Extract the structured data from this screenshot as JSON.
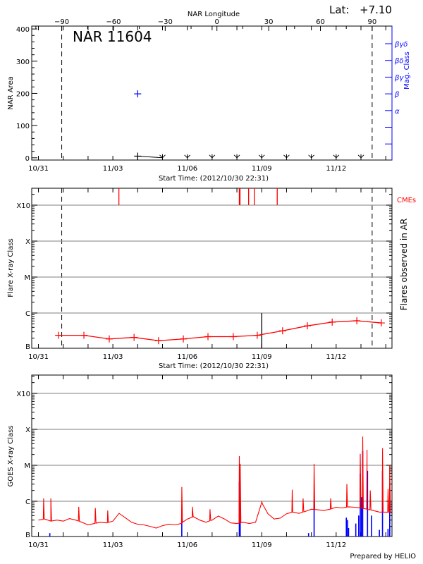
{
  "header": {
    "lat_label": "Lat:",
    "lat_value": "+7.10",
    "region_title": "NAR 11604",
    "prepared_by": "Prepared by HELIO"
  },
  "colors": {
    "flux": "#ff0000",
    "events": "#0000ff",
    "cme": "#ff0000",
    "mag": "#0000ff",
    "grid": "#999999",
    "axis": "#000000"
  },
  "chart_data": [
    {
      "type": "line",
      "name": "nar-area-panel",
      "xlabel": "Start Time: (2012/10/30 22:31)",
      "ylabel": "NAR Area",
      "top_xlabel": "NAR Longitude",
      "right_ylabel": "Mag. Class",
      "xlim": [
        "2012-10-30T17:30",
        "2012-11-14T06:00"
      ],
      "x_tick_labels": [
        {
          "t": "2012-10-31T00:00",
          "label": "10/31"
        },
        {
          "t": "2012-11-03T00:00",
          "label": "11/03"
        },
        {
          "t": "2012-11-06T00:00",
          "label": "11/06"
        },
        {
          "t": "2012-11-09T00:00",
          "label": "11/09"
        },
        {
          "t": "2012-11-12T00:00",
          "label": "11/12"
        }
      ],
      "ylim": [
        -7,
        409
      ],
      "y_ticks": [
        0,
        100,
        200,
        300,
        400
      ],
      "lon_lim": [
        -107.4,
        101.5
      ],
      "lon_ticks": [
        -90,
        -60,
        -30,
        0,
        30,
        60,
        90
      ],
      "limb_lines_lon": [
        -90,
        90
      ],
      "mag_class_ticks": [
        "βγδ",
        "βδ",
        "βγ",
        "β",
        "α",
        "",
        ""
      ],
      "area_points": [
        {
          "t": "2012-11-04T00:00",
          "area": 5
        }
      ],
      "area_zero_markers": [
        "2012-11-05T00:00",
        "2012-11-06T00:00",
        "2012-11-07T00:00",
        "2012-11-08T00:00",
        "2012-11-09T00:00",
        "2012-11-10T00:00",
        "2012-11-11T00:00",
        "2012-11-12T00:00",
        "2012-11-13T00:00"
      ],
      "mag_class_points": [
        {
          "t": "2012-11-04T00:00",
          "class": "β"
        }
      ]
    },
    {
      "type": "line",
      "name": "flare-class-panel",
      "xlabel": "Start Time: (2012/10/30 22:31)",
      "ylabel": "Flare X-ray Class",
      "right_ylabel": "Flares observed in AR",
      "cme_label": "CMEs",
      "y_scale": "log",
      "ylim": [
        "B1.0",
        "X30"
      ],
      "y_levels": [
        {
          "label": "B",
          "flux": 1e-07
        },
        {
          "label": "C",
          "flux": 1e-06
        },
        {
          "label": "M",
          "flux": 1e-05
        },
        {
          "label": "X",
          "flux": 0.0001
        },
        {
          "label": "X10",
          "flux": 0.001
        }
      ],
      "grid": true,
      "background_flux": [
        {
          "t": "2012-10-31T19:30",
          "class": "B2.4"
        },
        {
          "t": "2012-11-01T20:00",
          "class": "B2.4"
        },
        {
          "t": "2012-11-02T20:30",
          "class": "B1.9"
        },
        {
          "t": "2012-11-03T20:30",
          "class": "B2.1"
        },
        {
          "t": "2012-11-04T20:10",
          "class": "B1.7"
        },
        {
          "t": "2012-11-05T20:10",
          "class": "B1.9"
        },
        {
          "t": "2012-11-06T20:00",
          "class": "B2.2"
        },
        {
          "t": "2012-11-07T20:30",
          "class": "B2.2"
        },
        {
          "t": "2012-11-08T19:40",
          "class": "B2.4"
        },
        {
          "t": "2012-11-09T20:10",
          "class": "B3.2"
        },
        {
          "t": "2012-11-10T20:10",
          "class": "B4.4"
        },
        {
          "t": "2012-11-11T20:10",
          "class": "B5.6"
        },
        {
          "t": "2012-11-12T20:00",
          "class": "B6.1"
        },
        {
          "t": "2012-11-13T19:40",
          "class": "B5.3"
        }
      ],
      "reference_line": {
        "t": "2012-11-09T00:00",
        "from": "B1.0",
        "to": "C1.0"
      },
      "cmes": [
        "2012-11-03T05:50",
        "2012-11-08T02:20",
        "2012-11-08T03:00",
        "2012-11-08T11:20",
        "2012-11-08T16:50",
        "2012-11-09T15:00"
      ]
    },
    {
      "type": "line",
      "name": "goes-xray-panel",
      "ylabel": "GOES X-ray Class",
      "y_scale": "log",
      "ylim": [
        "B1.0",
        "X30"
      ],
      "y_levels": [
        {
          "label": "B",
          "flux": 1e-07
        },
        {
          "label": "C",
          "flux": 1e-06
        },
        {
          "label": "M",
          "flux": 1e-05
        },
        {
          "label": "X",
          "flux": 0.0001
        },
        {
          "label": "X10",
          "flux": 0.001
        }
      ],
      "grid": true,
      "goes_start": "2012-10-31T00:00",
      "goes_step_hours": 6,
      "goes_baseline": [
        "B3.0",
        "B3.2",
        "B2.8",
        "B3.0",
        "B2.8",
        "B3.3",
        "B3.0",
        "B2.6",
        "B2.2",
        "B2.4",
        "B2.6",
        "B2.5",
        "B2.8",
        "B4.6",
        "B3.5",
        "B2.6",
        "B2.3",
        "B2.2",
        "B2.0",
        "B1.8",
        "B2.1",
        "B2.3",
        "B2.2",
        "B2.4",
        "B3.2",
        "B3.7",
        "B3.0",
        "B2.6",
        "B3.0",
        "B3.9",
        "B3.2",
        "B2.5",
        "B2.4",
        "B2.6",
        "B2.4",
        "B2.6",
        "B9.0",
        "B4.5",
        "B3.2",
        "B3.4",
        "B4.5",
        "B5.0",
        "B4.6",
        "B5.2",
        "B6.0",
        "B5.8",
        "B5.5",
        "B6.0",
        "B6.8",
        "B6.5",
        "B7.0",
        "B6.8",
        "B6.5",
        "B6.0",
        "B5.5",
        "B5.0",
        "B5.0",
        "B4.8"
      ],
      "goes_peaks": [
        {
          "t": "2012-10-31T05:00",
          "class": "C1.2"
        },
        {
          "t": "2012-10-31T12:00",
          "class": "C1.2"
        },
        {
          "t": "2012-11-01T15:00",
          "class": "B7.0"
        },
        {
          "t": "2012-11-02T07:00",
          "class": "B6.5"
        },
        {
          "t": "2012-11-02T19:00",
          "class": "B5.5"
        },
        {
          "t": "2012-11-05T18:40",
          "class": "C2.5"
        },
        {
          "t": "2012-11-06T05:00",
          "class": "B7.0"
        },
        {
          "t": "2012-11-06T22:00",
          "class": "B6.0"
        },
        {
          "t": "2012-11-08T02:20",
          "class": "M1.8"
        },
        {
          "t": "2012-11-08T03:10",
          "class": "M1.1"
        },
        {
          "t": "2012-11-09T00:00",
          "class": "C1.0"
        },
        {
          "t": "2012-11-10T05:30",
          "class": "C2.1"
        },
        {
          "t": "2012-11-10T16:00",
          "class": "C1.2"
        },
        {
          "t": "2012-11-11T02:40",
          "class": "M1.1"
        },
        {
          "t": "2012-11-11T18:40",
          "class": "C1.2"
        },
        {
          "t": "2012-11-12T10:20",
          "class": "C3.0"
        },
        {
          "t": "2012-11-12T23:20",
          "class": "M2.1"
        },
        {
          "t": "2012-11-13T01:40",
          "class": "M6.3"
        },
        {
          "t": "2012-11-13T05:50",
          "class": "M2.7"
        },
        {
          "t": "2012-11-13T09:00",
          "class": "C2.0"
        },
        {
          "t": "2012-11-13T20:50",
          "class": "M3.0"
        },
        {
          "t": "2012-11-14T02:10",
          "class": "C2.2"
        },
        {
          "t": "2012-11-14T03:50",
          "class": "M1.0"
        }
      ],
      "flare_events": [
        {
          "t": "2012-10-31T11:00",
          "class": "B1.3"
        },
        {
          "t": "2012-11-05T18:40",
          "class": "B3.4"
        },
        {
          "t": "2012-11-08T02:20",
          "class": "C3.5"
        },
        {
          "t": "2012-11-08T03:10",
          "class": "C1.3"
        },
        {
          "t": "2012-11-10T21:20",
          "class": "B1.3"
        },
        {
          "t": "2012-11-11T02:40",
          "class": "C1.0"
        },
        {
          "t": "2012-11-12T09:50",
          "class": "B3.5"
        },
        {
          "t": "2012-11-12T11:00",
          "class": "B3.0"
        },
        {
          "t": "2012-11-12T12:00",
          "class": "B1.8"
        },
        {
          "t": "2012-11-12T19:00",
          "class": "B2.4"
        },
        {
          "t": "2012-11-12T21:50",
          "class": "B4.0"
        },
        {
          "t": "2012-11-12T23:20",
          "class": "C5.8"
        },
        {
          "t": "2012-11-13T00:30",
          "class": "C1.3"
        },
        {
          "t": "2012-11-13T01:40",
          "class": "M2.5"
        },
        {
          "t": "2012-11-13T06:20",
          "class": "C7.0"
        },
        {
          "t": "2012-11-13T10:10",
          "class": "B4.0"
        },
        {
          "t": "2012-11-13T17:50",
          "class": "B1.6"
        },
        {
          "t": "2012-11-13T20:50",
          "class": "C7.0"
        },
        {
          "t": "2012-11-14T02:10",
          "class": "B1.7"
        },
        {
          "t": "2012-11-14T03:50",
          "class": "C1.5"
        }
      ]
    }
  ]
}
